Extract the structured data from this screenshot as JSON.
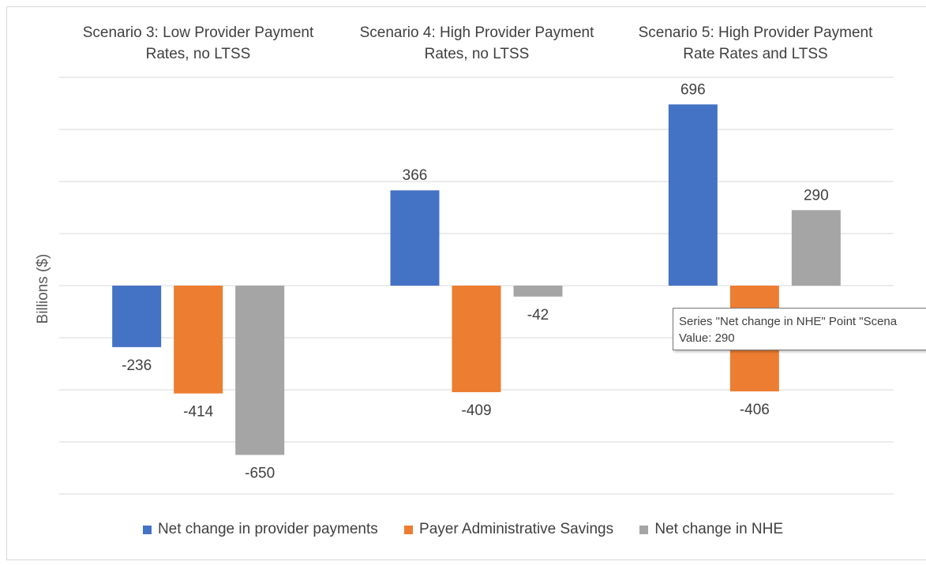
{
  "chart_data": {
    "type": "bar",
    "categories": [
      "Scenario 3: Low Provider Payment Rates, no LTSS",
      "Scenario 4: High Provider Payment Rates, no LTSS",
      "Scenario 5: High Provider Payment Rate Rates and LTSS"
    ],
    "category_lines": [
      [
        "Scenario 3: Low Provider Payment",
        "Rates, no LTSS"
      ],
      [
        "Scenario 4: High Provider Payment",
        "Rates, no LTSS"
      ],
      [
        "Scenario 5: High Provider Payment",
        "Rate Rates and LTSS"
      ]
    ],
    "series": [
      {
        "name": "Net change in provider payments",
        "values": [
          -236,
          366,
          696
        ],
        "color": "#4472C4"
      },
      {
        "name": "Payer Administrative Savings",
        "values": [
          -414,
          -409,
          -406
        ],
        "color": "#ED7D31"
      },
      {
        "name": "Net change in NHE",
        "values": [
          -650,
          -42,
          290
        ],
        "color": "#A5A5A5"
      }
    ],
    "ylabel": "Billions ($)",
    "ylim": [
      -800,
      800
    ],
    "ytick_step": 200,
    "grid": true,
    "legend_position": "bottom",
    "category_labels_position": "top"
  },
  "tooltip": {
    "line1": "Series \"Net change in NHE\" Point \"Scena",
    "line2": "Value: 290"
  }
}
